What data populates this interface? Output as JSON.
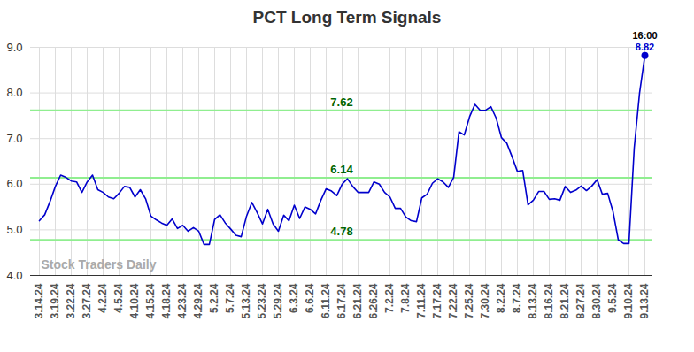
{
  "chart_data": {
    "type": "line",
    "title": "PCT Long Term Signals",
    "categories": [
      "3.14.24",
      null,
      null,
      "3.19.24",
      null,
      null,
      "3.22.24",
      null,
      null,
      "3.27.24",
      null,
      null,
      "4.2.24",
      null,
      null,
      "4.5.24",
      null,
      null,
      "4.10.24",
      null,
      null,
      "4.15.24",
      null,
      null,
      "4.18.24",
      null,
      null,
      "4.23.24",
      null,
      null,
      "4.29.24",
      null,
      null,
      "5.2.24",
      null,
      null,
      "5.7.24",
      null,
      null,
      "5.13.24",
      null,
      null,
      "5.23.24",
      null,
      null,
      "5.29.24",
      null,
      null,
      "6.3.24",
      null,
      null,
      "6.6.24",
      null,
      null,
      "6.11.24",
      null,
      null,
      "6.17.24",
      null,
      null,
      "6.21.24",
      null,
      null,
      "6.26.24",
      null,
      null,
      "7.2.24",
      null,
      null,
      "7.8.24",
      null,
      null,
      "7.11.24",
      null,
      null,
      "7.17.24",
      null,
      null,
      "7.22.24",
      null,
      null,
      "7.25.24",
      null,
      null,
      "7.30.24",
      null,
      null,
      "8.2.24",
      null,
      null,
      "8.7.24",
      null,
      null,
      "8.13.24",
      null,
      null,
      "8.16.24",
      null,
      null,
      "8.21.24",
      null,
      null,
      "8.27.24",
      null,
      null,
      "8.30.24",
      null,
      null,
      "9.5.24",
      null,
      null,
      "9.10.24",
      null,
      null,
      "9.13.24"
    ],
    "values": [
      5.2,
      5.33,
      5.62,
      5.95,
      6.2,
      6.15,
      6.07,
      6.05,
      5.82,
      6.05,
      6.2,
      5.88,
      5.82,
      5.72,
      5.68,
      5.8,
      5.95,
      5.93,
      5.72,
      5.88,
      5.68,
      5.3,
      5.22,
      5.15,
      5.1,
      5.24,
      5.03,
      5.1,
      4.97,
      5.05,
      4.97,
      4.68,
      4.68,
      5.23,
      5.33,
      5.15,
      5.02,
      4.88,
      4.85,
      5.3,
      5.6,
      5.38,
      5.13,
      5.45,
      5.13,
      4.97,
      5.32,
      5.2,
      5.54,
      5.25,
      5.5,
      5.45,
      5.35,
      5.65,
      5.9,
      5.85,
      5.75,
      6.0,
      6.12,
      5.95,
      5.82,
      5.82,
      5.82,
      6.05,
      6.0,
      5.82,
      5.72,
      5.47,
      5.47,
      5.28,
      5.2,
      5.18,
      5.7,
      5.78,
      6.02,
      6.12,
      6.05,
      5.93,
      6.15,
      7.15,
      7.08,
      7.48,
      7.75,
      7.62,
      7.62,
      7.7,
      7.45,
      7.02,
      6.9,
      6.6,
      6.28,
      6.3,
      5.55,
      5.65,
      5.84,
      5.84,
      5.67,
      5.68,
      5.65,
      5.95,
      5.82,
      5.87,
      5.96,
      5.86,
      5.96,
      6.1,
      5.78,
      5.8,
      5.4,
      4.78,
      4.7,
      4.7,
      6.8,
      8.0,
      8.82
    ],
    "color": "#0000cc",
    "levels": [
      7.62,
      6.14,
      4.78
    ],
    "level_color": "#90ee90",
    "level_label_color": "#006400",
    "last_point": {
      "time": "16:00",
      "value": 8.82
    },
    "watermark": "Stock Traders Daily",
    "ylim": [
      4,
      9
    ],
    "yticks": [
      4,
      5,
      6,
      7,
      8,
      9
    ],
    "grid": true,
    "marker": "none"
  }
}
